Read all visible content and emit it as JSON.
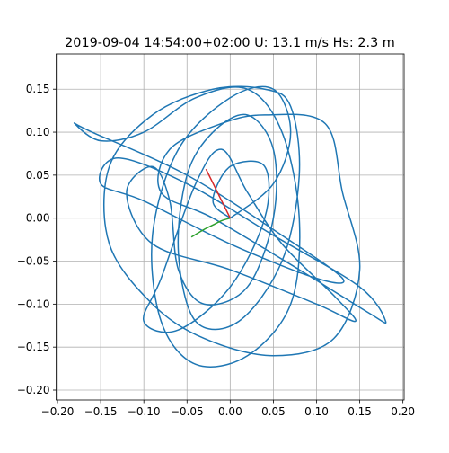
{
  "chart_data": {
    "type": "line",
    "title": "2019-09-04 14:54:00+02:00 U: 13.1 m/s Hs: 2.3 m",
    "grid": true,
    "xlim": [
      -0.2016,
      0.2014
    ],
    "ylim": [
      -0.2115,
      0.191
    ],
    "xticks": [
      {
        "value": -0.2,
        "label": "−0.20"
      },
      {
        "value": -0.15,
        "label": "−0.15"
      },
      {
        "value": -0.1,
        "label": "−0.10"
      },
      {
        "value": -0.05,
        "label": "−0.05"
      },
      {
        "value": 0,
        "label": "0.00"
      },
      {
        "value": 0.05,
        "label": "0.05"
      },
      {
        "value": 0.1,
        "label": "0.10"
      },
      {
        "value": 0.15,
        "label": "0.15"
      },
      {
        "value": 0.2,
        "label": "0.20"
      }
    ],
    "yticks": [
      {
        "value": -0.2,
        "label": "−0.20"
      },
      {
        "value": -0.15,
        "label": "−0.15"
      },
      {
        "value": -0.1,
        "label": "−0.10"
      },
      {
        "value": -0.05,
        "label": "−0.05"
      },
      {
        "value": 0,
        "label": "0.00"
      },
      {
        "value": 0.05,
        "label": "0.05"
      },
      {
        "value": 0.1,
        "label": "0.10"
      },
      {
        "value": 0.15,
        "label": "0.15"
      }
    ],
    "series": [
      {
        "color": "#1f77b4",
        "x": [
          0.0,
          0.05,
          0.07,
          0.05,
          0.0,
          -0.06,
          -0.09,
          -0.08,
          -0.04,
          0.02,
          0.07,
          0.08,
          0.06,
          0.02,
          -0.04,
          -0.1,
          -0.15,
          -0.18,
          -0.16,
          -0.05,
          0.06,
          0.13,
          0.1,
          0.0,
          -0.1,
          -0.15,
          -0.13,
          -0.05,
          0.05,
          0.15,
          0.18,
          0.16,
          0.08,
          -0.02,
          -0.08,
          -0.07,
          -0.01,
          0.04,
          0.11,
          0.13,
          0.15,
          0.12,
          0.05,
          -0.03,
          -0.09,
          -0.14,
          -0.14,
          -0.09,
          -0.02,
          0.04,
          0.07,
          0.08,
          0.06,
          0.01,
          -0.04,
          -0.06,
          -0.05,
          -0.02,
          0.02,
          0.05,
          0.05,
          0.02,
          -0.03,
          -0.06,
          -0.07,
          -0.09,
          -0.12,
          -0.09,
          0.0,
          0.1,
          0.145,
          0.12,
          0.06,
          0.02,
          -0.01,
          -0.04,
          -0.08,
          -0.1,
          -0.06,
          0.0,
          0.04,
          0.04,
          0.0,
          -0.02,
          0.0
        ],
        "values": [
          0.0,
          0.04,
          0.1,
          0.15,
          0.14,
          0.08,
          -0.02,
          -0.12,
          -0.17,
          -0.16,
          -0.1,
          0.0,
          0.1,
          0.15,
          0.14,
          0.1,
          0.09,
          0.11,
          0.1,
          0.05,
          -0.02,
          -0.07,
          -0.07,
          -0.03,
          0.02,
          0.04,
          0.07,
          0.04,
          -0.02,
          -0.08,
          -0.12,
          -0.11,
          -0.06,
          0.0,
          0.03,
          0.08,
          0.11,
          0.12,
          0.11,
          0.03,
          -0.06,
          -0.14,
          -0.16,
          -0.14,
          -0.1,
          -0.03,
          0.06,
          0.12,
          0.15,
          0.15,
          0.13,
          0.05,
          -0.05,
          -0.12,
          -0.12,
          -0.04,
          0.05,
          0.1,
          0.12,
          0.08,
          0.0,
          -0.08,
          -0.1,
          -0.06,
          0.02,
          0.06,
          0.03,
          -0.03,
          -0.06,
          -0.1,
          -0.12,
          -0.09,
          -0.03,
          0.03,
          0.08,
          0.04,
          -0.07,
          -0.12,
          -0.13,
          -0.08,
          0.0,
          0.06,
          0.06,
          0.02,
          0.0
        ]
      },
      {
        "color": "#d62728",
        "x": [
          0.0,
          -0.028
        ],
        "values": [
          0.0,
          0.057
        ]
      },
      {
        "color": "#2ca02c",
        "x": [
          0.0,
          -0.01,
          -0.02,
          -0.03,
          -0.045
        ],
        "values": [
          0.0,
          -0.003,
          -0.008,
          -0.013,
          -0.022
        ]
      }
    ]
  }
}
